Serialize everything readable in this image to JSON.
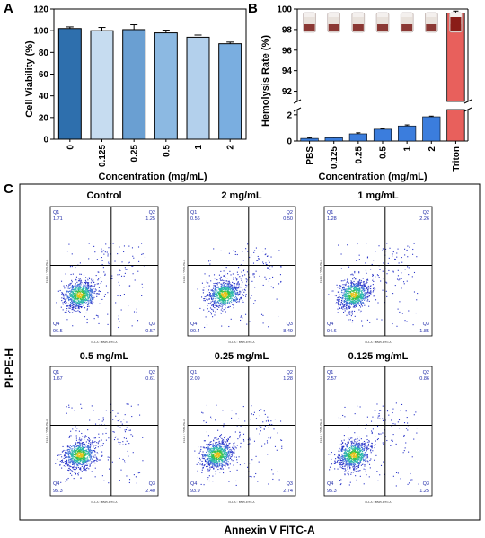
{
  "panel_labels": {
    "a": "A",
    "b": "B",
    "c": "C"
  },
  "chart_data": [
    {
      "type": "bar",
      "panel": "A",
      "categories": [
        "0",
        "0.125",
        "0.25",
        "0.5",
        "1",
        "2"
      ],
      "values": [
        102,
        100,
        101,
        98,
        94,
        88
      ],
      "errors": [
        1.5,
        3,
        4.5,
        2.5,
        2,
        1.5
      ],
      "xlabel": "Concentration (mg/mL)",
      "ylabel": "Cell Viability (%)",
      "ylim": [
        0,
        120
      ],
      "yticks": [
        "0",
        "20",
        "40",
        "60",
        "80",
        "100",
        "120"
      ],
      "colors": [
        "#2e6fad",
        "#c6dcf0",
        "#6a9fd2",
        "#8cb9e2",
        "#b3d0ec",
        "#7aaee0"
      ]
    },
    {
      "type": "bar",
      "panel": "B",
      "categories": [
        "PBS",
        "0.125",
        "0.25",
        "0.5",
        "1",
        "2",
        "Triton"
      ],
      "values": [
        0.2,
        0.25,
        0.55,
        0.9,
        1.15,
        1.85,
        99.6
      ],
      "errors": [
        0.05,
        0.05,
        0.08,
        0.05,
        0.08,
        0.05,
        0.2
      ],
      "xlabel": "Concentration (mg/mL)",
      "ylabel": "Hemolysis Rate (%)",
      "broken_axis": {
        "lower_range": [
          0,
          2.4
        ],
        "upper_range": [
          91,
          100
        ]
      },
      "yticks_lower": [
        "0",
        "2"
      ],
      "yticks_upper": [
        "92",
        "94",
        "96",
        "98",
        "100"
      ],
      "colors": {
        "samples": "#3b7ddd",
        "triton": "#e8605c"
      }
    },
    {
      "type": "scatter",
      "panel": "C",
      "xlabel": "Annexin V FITC-A",
      "ylabel": "PI-PE-H",
      "plots": [
        {
          "title": "Control",
          "Q1": "1.71",
          "Q2": "1.25",
          "Q3": "0.57",
          "Q4": "96.5"
        },
        {
          "title": "2 mg/mL",
          "Q1": "0.56",
          "Q2": "0.50",
          "Q3": "8.49",
          "Q4": "90.4"
        },
        {
          "title": "1 mg/mL",
          "Q1": "1.28",
          "Q2": "2.26",
          "Q3": "1.85",
          "Q4": "94.6"
        },
        {
          "title": "0.5 mg/mL",
          "Q1": "1.67",
          "Q2": "0.61",
          "Q3": "2.40",
          "Q4": "95.3"
        },
        {
          "title": "0.25 mg/mL",
          "Q1": "2.09",
          "Q2": "1.28",
          "Q3": "2.74",
          "Q4": "93.9"
        },
        {
          "title": "0.125 mg/mL",
          "Q1": "2.57",
          "Q2": "0.86",
          "Q3": "1.25",
          "Q4": "95.3"
        }
      ],
      "quadrant_names": [
        "Q1",
        "Q2",
        "Q3",
        "Q4"
      ],
      "axis_small_x": "FL1-A :: B525-FITC-A",
      "axis_small_y": "FL4-A :: Y585-PE-A"
    }
  ]
}
